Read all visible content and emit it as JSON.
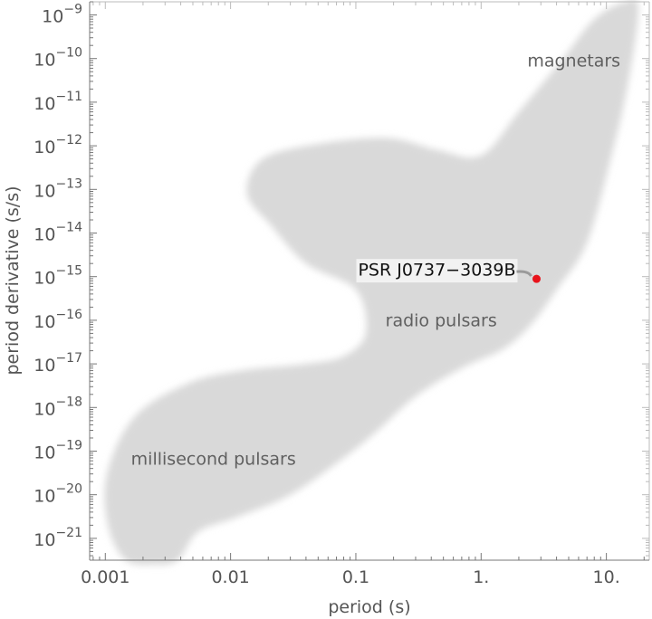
{
  "chart_data": {
    "type": "scatter",
    "xlabel": "period (s)",
    "ylabel": "period derivative (s/s)",
    "x_scale": "log",
    "y_scale": "log",
    "xlim": [
      0.00075,
      22
    ],
    "ylim": [
      3.16e-22,
      2e-09
    ],
    "x_ticks": [
      {
        "value": 0.001,
        "label": "0.001"
      },
      {
        "value": 0.01,
        "label": "0.01"
      },
      {
        "value": 0.1,
        "label": "0.1"
      },
      {
        "value": 1,
        "label": "1."
      },
      {
        "value": 10,
        "label": "10."
      }
    ],
    "y_ticks": [
      {
        "exp": -9,
        "base": "10",
        "sup": "−9"
      },
      {
        "exp": -10,
        "base": "10",
        "sup": "−10"
      },
      {
        "exp": -11,
        "base": "10",
        "sup": "−11"
      },
      {
        "exp": -12,
        "base": "10",
        "sup": "−12"
      },
      {
        "exp": -13,
        "base": "10",
        "sup": "−13"
      },
      {
        "exp": -14,
        "base": "10",
        "sup": "−14"
      },
      {
        "exp": -15,
        "base": "10",
        "sup": "−15"
      },
      {
        "exp": -16,
        "base": "10",
        "sup": "−16"
      },
      {
        "exp": -17,
        "base": "10",
        "sup": "−17"
      },
      {
        "exp": -18,
        "base": "10",
        "sup": "−18"
      },
      {
        "exp": -19,
        "base": "10",
        "sup": "−19"
      },
      {
        "exp": -20,
        "base": "10",
        "sup": "−20"
      },
      {
        "exp": -21,
        "base": "10",
        "sup": "−21"
      }
    ],
    "region": {
      "color": "#d9d9d9",
      "outline": [
        [
          0.00105,
          2e-21
        ],
        [
          0.00145,
          3.2e-22
        ],
        [
          0.0025,
          2.5e-22
        ],
        [
          0.0038,
          3.2e-22
        ],
        [
          0.0055,
          1.4e-21
        ],
        [
          0.011,
          3e-21
        ],
        [
          0.03,
          1e-20
        ],
        [
          0.08,
          7e-20
        ],
        [
          0.15,
          3e-19
        ],
        [
          0.3,
          1.8e-18
        ],
        [
          0.7,
          8e-18
        ],
        [
          1.5,
          2.2e-17
        ],
        [
          2.5,
          8e-17
        ],
        [
          4.0,
          5e-16
        ],
        [
          7.0,
          6e-15
        ],
        [
          11,
          6e-13
        ],
        [
          15,
          3e-11
        ],
        [
          18,
          1.5e-09
        ],
        [
          14,
          2e-09
        ],
        [
          8,
          8e-10
        ],
        [
          4.5,
          1e-10
        ],
        [
          2.0,
          6e-12
        ],
        [
          1.0,
          6e-13
        ],
        [
          0.45,
          8e-13
        ],
        [
          0.18,
          1.5e-12
        ],
        [
          0.05,
          1.1e-12
        ],
        [
          0.018,
          5e-13
        ],
        [
          0.0135,
          8e-14
        ],
        [
          0.021,
          1.5e-14
        ],
        [
          0.04,
          2e-15
        ],
        [
          0.1,
          5e-16
        ],
        [
          0.12,
          5e-17
        ],
        [
          0.08,
          1.5e-17
        ],
        [
          0.04,
          1e-17
        ],
        [
          0.012,
          7e-18
        ],
        [
          0.0045,
          3.5e-18
        ],
        [
          0.0017,
          6e-19
        ],
        [
          0.00103,
          3e-20
        ]
      ]
    },
    "region_labels": [
      {
        "text": "magnetars",
        "x": 5.5,
        "y": 8.5e-11
      },
      {
        "text": "radio pulsars",
        "x": 0.48,
        "y": 9.5e-17
      },
      {
        "text": "millisecond pulsars",
        "x": 0.0073,
        "y": 6.3e-20
      }
    ],
    "points": [
      {
        "name": "PSR J0737−3039B",
        "x": 2.77,
        "y": 8.9e-16,
        "color": "#e8131b"
      }
    ],
    "annotation": {
      "text": "PSR J0737−3039B",
      "target": "PSR J0737−3039B"
    }
  }
}
